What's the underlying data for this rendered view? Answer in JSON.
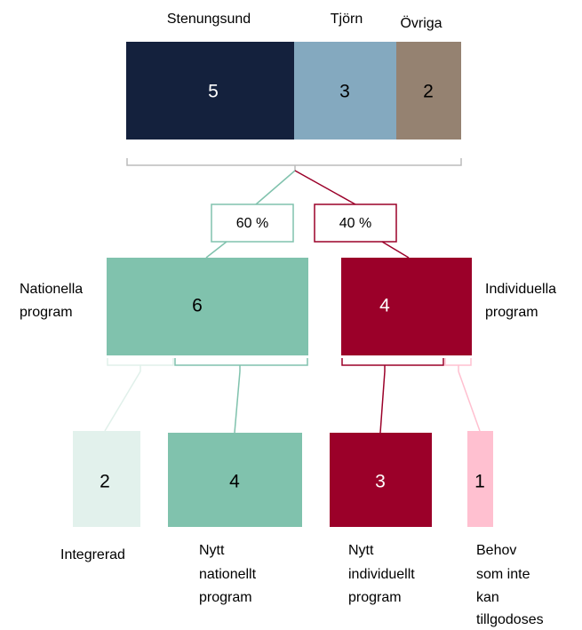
{
  "top": {
    "segments": [
      {
        "label": "Stenungsund",
        "value": 5
      },
      {
        "label": "Tjörn",
        "value": 3
      },
      {
        "label": "Övriga",
        "value": 2
      }
    ]
  },
  "split": [
    {
      "label": "60 %"
    },
    {
      "label": "40 %"
    }
  ],
  "groups": [
    {
      "label": [
        "Nationella",
        "program"
      ],
      "value": 6
    },
    {
      "label": [
        "Individuella",
        "program"
      ],
      "value": 4
    }
  ],
  "outcomes": [
    {
      "label": [
        "Integrerad"
      ],
      "value": 2
    },
    {
      "label": [
        "Nytt",
        "nationellt",
        "program"
      ],
      "value": 4
    },
    {
      "label": [
        "Nytt",
        "individuellt",
        "program"
      ],
      "value": 3
    },
    {
      "label": [
        "Behov",
        "som inte",
        "kan",
        "tillgodoses"
      ],
      "value": 1
    }
  ]
}
